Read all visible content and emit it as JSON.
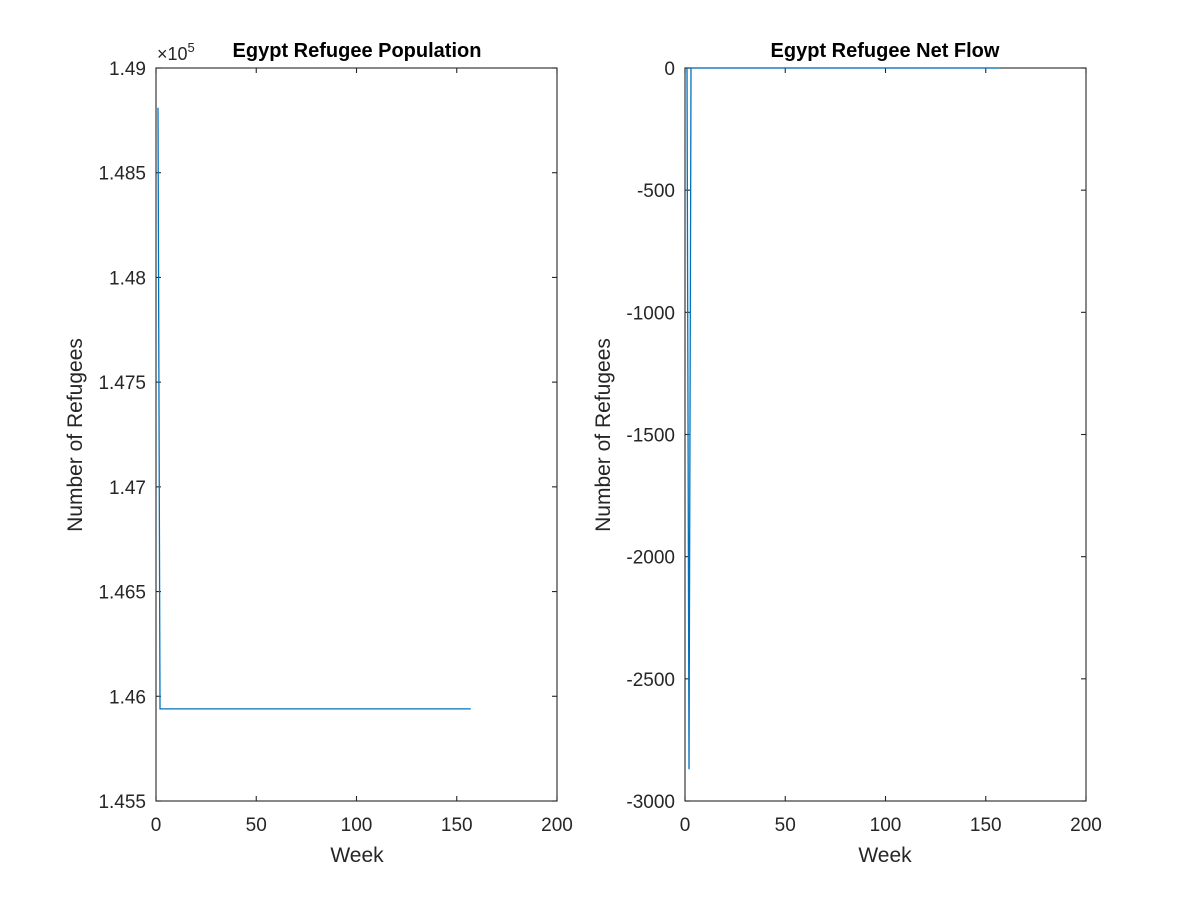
{
  "figure": {
    "background": "#ffffff"
  },
  "chart_data": [
    {
      "type": "line",
      "title": "Egypt Refugee Population",
      "xlabel": "Week",
      "ylabel": "Number of Refugees",
      "exponent_label": {
        "base": "×10",
        "power": "5"
      },
      "xlim": [
        0,
        200
      ],
      "ylim": [
        1.455,
        1.49
      ],
      "xticks": [
        0,
        50,
        100,
        150,
        200
      ],
      "xtick_labels": [
        "0",
        "50",
        "100",
        "150",
        "200"
      ],
      "yticks": [
        1.455,
        1.46,
        1.465,
        1.47,
        1.475,
        1.48,
        1.485,
        1.49
      ],
      "ytick_labels": [
        "1.455",
        "1.46",
        "1.465",
        "1.47",
        "1.475",
        "1.48",
        "1.485",
        "1.49"
      ],
      "grid": false,
      "color": "#0072BD",
      "series": [
        {
          "x": [
            1,
            2,
            3,
            157
          ],
          "y": [
            1.4881,
            1.4594,
            1.4594,
            1.4594
          ]
        }
      ]
    },
    {
      "type": "line",
      "title": "Egypt Refugee Net Flow",
      "xlabel": "Week",
      "ylabel": "Number of Refugees",
      "xlim": [
        0,
        200
      ],
      "ylim": [
        -3000,
        0
      ],
      "xticks": [
        0,
        50,
        100,
        150,
        200
      ],
      "xtick_labels": [
        "0",
        "50",
        "100",
        "150",
        "200"
      ],
      "yticks": [
        -3000,
        -2500,
        -2000,
        -1500,
        -1000,
        -500,
        0
      ],
      "ytick_labels": [
        "-3000",
        "-2500",
        "-2000",
        "-1500",
        "-1000",
        "-500",
        "0"
      ],
      "grid": false,
      "color": "#0072BD",
      "series": [
        {
          "x": [
            1,
            2,
            3,
            157
          ],
          "y": [
            0,
            -2870,
            0,
            0
          ]
        }
      ]
    }
  ]
}
